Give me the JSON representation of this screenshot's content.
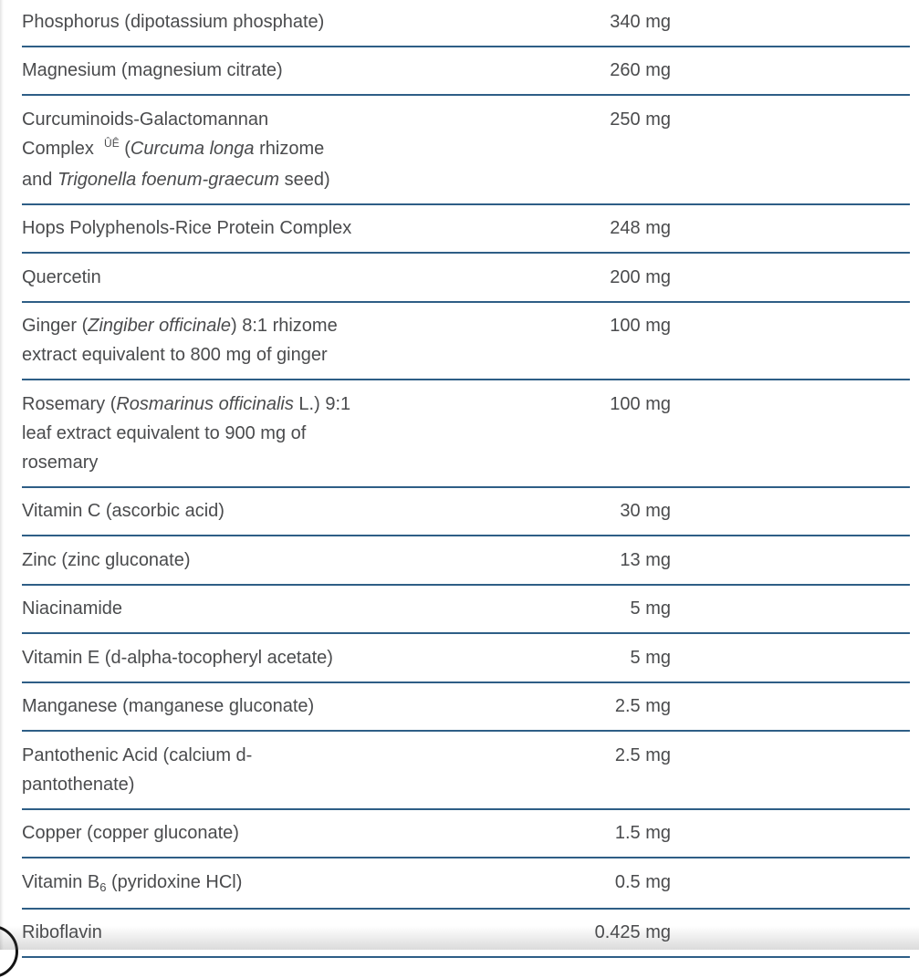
{
  "page": {
    "text_color": "#4a4b4d",
    "divider_color": "#2e5e86",
    "background_color": "#ffffff"
  },
  "table": {
    "rows": [
      {
        "name_segments": [
          {
            "t": "Phosphorus (dipotassium phosphate)",
            "s": ""
          }
        ],
        "amount": "340 mg"
      },
      {
        "name_segments": [
          {
            "t": "Magnesium (magnesium citrate)",
            "s": ""
          }
        ],
        "amount": "260 mg"
      },
      {
        "name_segments": [
          {
            "t": "Curcuminoids-Galactomannan\nComplex  ",
            "s": ""
          },
          {
            "t": "ÛÊ",
            "s": "sup"
          },
          {
            "t": " (",
            "s": ""
          },
          {
            "t": "Curcuma longa",
            "s": "i"
          },
          {
            "t": " rhizome\nand ",
            "s": ""
          },
          {
            "t": "Trigonella foenum-graecum",
            "s": "i"
          },
          {
            "t": " seed)",
            "s": ""
          }
        ],
        "amount": "250 mg"
      },
      {
        "name_segments": [
          {
            "t": "Hops Polyphenols-Rice Protein Complex",
            "s": ""
          }
        ],
        "amount": "248 mg"
      },
      {
        "name_segments": [
          {
            "t": "Quercetin",
            "s": ""
          }
        ],
        "amount": "200 mg"
      },
      {
        "name_segments": [
          {
            "t": "Ginger (",
            "s": ""
          },
          {
            "t": "Zingiber officinale",
            "s": "i"
          },
          {
            "t": ") 8:1 rhizome\nextract equivalent to 800 mg of ginger",
            "s": ""
          }
        ],
        "amount": "100 mg"
      },
      {
        "name_segments": [
          {
            "t": "Rosemary (",
            "s": ""
          },
          {
            "t": "Rosmarinus officinalis",
            "s": "i"
          },
          {
            "t": " L.) 9:1\nleaf extract equivalent to 900 mg of\nrosemary",
            "s": ""
          }
        ],
        "amount": "100 mg"
      },
      {
        "name_segments": [
          {
            "t": "Vitamin C (ascorbic acid)",
            "s": ""
          }
        ],
        "amount": "30 mg"
      },
      {
        "name_segments": [
          {
            "t": "Zinc (zinc gluconate)",
            "s": ""
          }
        ],
        "amount": "13 mg"
      },
      {
        "name_segments": [
          {
            "t": "Niacinamide",
            "s": ""
          }
        ],
        "amount": "5 mg"
      },
      {
        "name_segments": [
          {
            "t": "Vitamin E (d-alpha-tocopheryl acetate)",
            "s": ""
          }
        ],
        "amount": "5 mg"
      },
      {
        "name_segments": [
          {
            "t": "Manganese (manganese gluconate)",
            "s": ""
          }
        ],
        "amount": "2.5 mg"
      },
      {
        "name_segments": [
          {
            "t": "Pantothenic Acid (calcium d-\npantothenate)",
            "s": ""
          }
        ],
        "amount": "2.5 mg"
      },
      {
        "name_segments": [
          {
            "t": "Copper (copper gluconate)",
            "s": ""
          }
        ],
        "amount": "1.5 mg"
      },
      {
        "name_segments": [
          {
            "t": "Vitamin B",
            "s": ""
          },
          {
            "t": "6",
            "s": "sub"
          },
          {
            "t": " (pyridoxine HCl)",
            "s": ""
          }
        ],
        "amount": "0.5 mg"
      },
      {
        "name_segments": [
          {
            "t": "Riboflavin",
            "s": ""
          }
        ],
        "amount": "0.425 mg"
      }
    ]
  }
}
